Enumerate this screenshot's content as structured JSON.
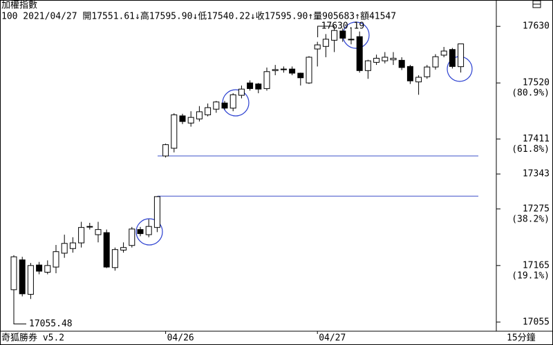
{
  "chart_data": {
    "type": "candlestick",
    "title": "加權指數",
    "info": "100 2021/04/27 開17551.61↓高17595.90↓低17540.22↓收17595.90↑量905683↑額41547",
    "footer": "奇狐勝券 v5.2",
    "period": "15分鐘",
    "categories": [
      null,
      null,
      null,
      null,
      null,
      null,
      null,
      null,
      null,
      null,
      null,
      null,
      null,
      null,
      null,
      null,
      null,
      null,
      "04/26",
      null,
      null,
      null,
      null,
      null,
      null,
      null,
      null,
      null,
      null,
      null,
      null,
      null,
      null,
      null,
      null,
      null,
      "04/27",
      null,
      null,
      null,
      null,
      null,
      null,
      null,
      null,
      null,
      null,
      null,
      null,
      null,
      null,
      null,
      null,
      null
    ],
    "series": [
      {
        "name": "open",
        "values": [
          17118,
          17176,
          17109,
          17166,
          17152,
          17162,
          17189,
          17198,
          17209,
          17240,
          17225,
          17229,
          17161,
          17195,
          17204,
          17235,
          17225,
          17239,
          17378,
          17393,
          17456,
          17442,
          17450,
          17458,
          17469,
          17481,
          17471,
          17496,
          17520,
          17518,
          17509,
          17544,
          17546,
          17547,
          17539,
          17520,
          17586,
          17591,
          17603,
          17621,
          17605,
          17610,
          17544,
          17560,
          17563,
          17565,
          17564,
          17552,
          17522,
          17532,
          17551,
          17574,
          17585,
          17551.61
        ]
      },
      {
        "name": "high",
        "values": [
          17185,
          17182,
          17170,
          17172,
          17175,
          17205,
          17225,
          17220,
          17250,
          17248,
          17250,
          17235,
          17200,
          17210,
          17240,
          17240,
          17255,
          17300,
          17402,
          17461,
          17460,
          17465,
          17475,
          17480,
          17485,
          17485,
          17500,
          17515,
          17525,
          17520,
          17550,
          17555,
          17552,
          17552,
          17540,
          17572,
          17600,
          17615,
          17630.19,
          17626,
          17628,
          17620,
          17565,
          17575,
          17580,
          17580,
          17570,
          17555,
          17535,
          17555,
          17576,
          17590,
          17588,
          17595.9
        ]
      },
      {
        "name": "low",
        "values": [
          17055.48,
          17105,
          17100,
          17148,
          17148,
          17150,
          17180,
          17190,
          17200,
          17235,
          17210,
          17160,
          17155,
          17190,
          17200,
          17222,
          17220,
          17230,
          17375,
          17385,
          17440,
          17435,
          17445,
          17455,
          17462,
          17468,
          17465,
          17490,
          17505,
          17500,
          17505,
          17535,
          17540,
          17535,
          17515,
          17518,
          17552,
          17570,
          17580,
          17600,
          17595,
          17540,
          17528,
          17555,
          17558,
          17555,
          17545,
          17518,
          17497,
          17528,
          17546,
          17570,
          17548,
          17540.22
        ]
      },
      {
        "name": "close",
        "values": [
          17182,
          17110,
          17165,
          17154,
          17165,
          17192,
          17208,
          17209,
          17239,
          17241,
          17235,
          17162,
          17196,
          17200,
          17236,
          17227,
          17241,
          17299,
          17400,
          17458,
          17445,
          17453,
          17464,
          17472,
          17483,
          17471,
          17497,
          17508,
          17509,
          17508,
          17542,
          17546,
          17547,
          17539,
          17530,
          17570,
          17594,
          17605,
          17622,
          17607,
          17604,
          17544,
          17563,
          17568,
          17570,
          17568,
          17550,
          17524,
          17531,
          17551,
          17571,
          17582,
          17552,
          17595.9
        ]
      }
    ],
    "up_color": "#ffffff",
    "down_color": "#000000",
    "ylim": [
      17040,
      17641
    ],
    "yticks": [
      17630,
      17520,
      17411,
      17343,
      17275,
      17165,
      17055
    ],
    "fib_labels": [
      {
        "value": 17520,
        "label": "(80.9%)"
      },
      {
        "value": 17411,
        "label": "(61.8%)"
      },
      {
        "value": 17275,
        "label": "(38.2%)"
      },
      {
        "value": 17165,
        "label": "(19.1%)"
      }
    ],
    "hlines": [
      17378,
      17300
    ],
    "hline_color": "#3a4fc8"
  }
}
